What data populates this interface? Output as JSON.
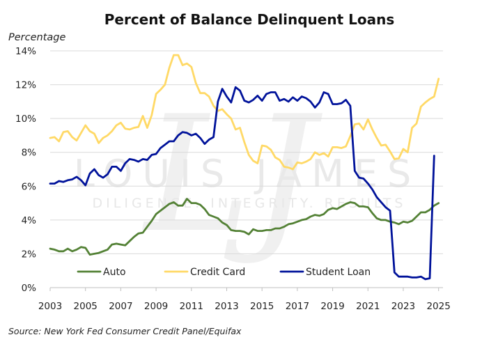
{
  "chart_data": {
    "type": "line",
    "title": "Percent of Balance Delinquent Loans",
    "ylabel": "Percentage",
    "xlabel": "",
    "source": "Source: New York Fed Consumer Credit Panel/Equifax",
    "watermark": {
      "main": "LOUIS JAMES",
      "tagline": "DILIGENCE. INTEGRITY. RESULTS",
      "monogram": "LJ"
    },
    "xlim": [
      2003,
      2025.25
    ],
    "ylim": [
      0,
      14
    ],
    "x_ticks": [
      "2003",
      "2005",
      "2007",
      "2009",
      "2011",
      "2013",
      "2015",
      "2017",
      "2019",
      "2021",
      "2023",
      "2025"
    ],
    "y_ticks": [
      "0%",
      "2%",
      "4%",
      "6%",
      "8%",
      "10%",
      "12%",
      "14%"
    ],
    "grid": "horizontal",
    "legend_position": "bottom",
    "series": [
      {
        "name": "Auto",
        "color": "#538135",
        "points": [
          [
            2003.0,
            2.3
          ],
          [
            2003.25,
            2.25
          ],
          [
            2003.5,
            2.15
          ],
          [
            2003.75,
            2.15
          ],
          [
            2004.0,
            2.3
          ],
          [
            2004.25,
            2.15
          ],
          [
            2004.5,
            2.25
          ],
          [
            2004.75,
            2.4
          ],
          [
            2005.0,
            2.35
          ],
          [
            2005.25,
            1.95
          ],
          [
            2005.5,
            2.0
          ],
          [
            2005.75,
            2.05
          ],
          [
            2006.0,
            2.15
          ],
          [
            2006.25,
            2.25
          ],
          [
            2006.5,
            2.55
          ],
          [
            2006.75,
            2.6
          ],
          [
            2007.0,
            2.55
          ],
          [
            2007.25,
            2.5
          ],
          [
            2007.5,
            2.75
          ],
          [
            2007.75,
            3.0
          ],
          [
            2008.0,
            3.2
          ],
          [
            2008.25,
            3.25
          ],
          [
            2008.5,
            3.6
          ],
          [
            2008.75,
            3.95
          ],
          [
            2009.0,
            4.35
          ],
          [
            2009.25,
            4.55
          ],
          [
            2009.5,
            4.75
          ],
          [
            2009.75,
            4.95
          ],
          [
            2010.0,
            5.05
          ],
          [
            2010.25,
            4.85
          ],
          [
            2010.5,
            4.85
          ],
          [
            2010.75,
            5.25
          ],
          [
            2011.0,
            5.0
          ],
          [
            2011.25,
            5.0
          ],
          [
            2011.5,
            4.9
          ],
          [
            2011.75,
            4.65
          ],
          [
            2012.0,
            4.3
          ],
          [
            2012.25,
            4.2
          ],
          [
            2012.5,
            4.1
          ],
          [
            2012.75,
            3.85
          ],
          [
            2013.0,
            3.7
          ],
          [
            2013.25,
            3.4
          ],
          [
            2013.5,
            3.35
          ],
          [
            2013.75,
            3.35
          ],
          [
            2014.0,
            3.3
          ],
          [
            2014.25,
            3.15
          ],
          [
            2014.5,
            3.45
          ],
          [
            2014.75,
            3.35
          ],
          [
            2015.0,
            3.35
          ],
          [
            2015.25,
            3.4
          ],
          [
            2015.5,
            3.4
          ],
          [
            2015.75,
            3.5
          ],
          [
            2016.0,
            3.5
          ],
          [
            2016.25,
            3.6
          ],
          [
            2016.5,
            3.75
          ],
          [
            2016.75,
            3.8
          ],
          [
            2017.0,
            3.9
          ],
          [
            2017.25,
            4.0
          ],
          [
            2017.5,
            4.05
          ],
          [
            2017.75,
            4.2
          ],
          [
            2018.0,
            4.3
          ],
          [
            2018.25,
            4.25
          ],
          [
            2018.5,
            4.35
          ],
          [
            2018.75,
            4.6
          ],
          [
            2019.0,
            4.7
          ],
          [
            2019.25,
            4.65
          ],
          [
            2019.5,
            4.8
          ],
          [
            2019.75,
            4.95
          ],
          [
            2020.0,
            5.05
          ],
          [
            2020.25,
            5.0
          ],
          [
            2020.5,
            4.8
          ],
          [
            2020.75,
            4.8
          ],
          [
            2021.0,
            4.75
          ],
          [
            2021.25,
            4.4
          ],
          [
            2021.5,
            4.1
          ],
          [
            2021.75,
            4.0
          ],
          [
            2022.0,
            4.0
          ],
          [
            2022.25,
            3.9
          ],
          [
            2022.5,
            3.85
          ],
          [
            2022.75,
            3.75
          ],
          [
            2023.0,
            3.9
          ],
          [
            2023.25,
            3.85
          ],
          [
            2023.5,
            3.95
          ],
          [
            2023.75,
            4.2
          ],
          [
            2024.0,
            4.45
          ],
          [
            2024.25,
            4.45
          ],
          [
            2024.5,
            4.6
          ],
          [
            2024.75,
            4.85
          ],
          [
            2025.0,
            5.0
          ]
        ]
      },
      {
        "name": "Credit Card",
        "color": "#ffd966",
        "points": [
          [
            2003.0,
            8.85
          ],
          [
            2003.25,
            8.9
          ],
          [
            2003.5,
            8.65
          ],
          [
            2003.75,
            9.2
          ],
          [
            2004.0,
            9.25
          ],
          [
            2004.25,
            8.9
          ],
          [
            2004.5,
            8.7
          ],
          [
            2004.75,
            9.15
          ],
          [
            2005.0,
            9.6
          ],
          [
            2005.25,
            9.25
          ],
          [
            2005.5,
            9.1
          ],
          [
            2005.75,
            8.55
          ],
          [
            2006.0,
            8.85
          ],
          [
            2006.25,
            9.0
          ],
          [
            2006.5,
            9.25
          ],
          [
            2006.75,
            9.6
          ],
          [
            2007.0,
            9.75
          ],
          [
            2007.25,
            9.4
          ],
          [
            2007.5,
            9.35
          ],
          [
            2007.75,
            9.45
          ],
          [
            2008.0,
            9.5
          ],
          [
            2008.25,
            10.15
          ],
          [
            2008.5,
            9.45
          ],
          [
            2008.75,
            10.2
          ],
          [
            2009.0,
            11.45
          ],
          [
            2009.25,
            11.7
          ],
          [
            2009.5,
            12.0
          ],
          [
            2009.75,
            13.0
          ],
          [
            2010.0,
            13.75
          ],
          [
            2010.25,
            13.75
          ],
          [
            2010.5,
            13.15
          ],
          [
            2010.75,
            13.25
          ],
          [
            2011.0,
            13.05
          ],
          [
            2011.25,
            12.1
          ],
          [
            2011.5,
            11.5
          ],
          [
            2011.75,
            11.5
          ],
          [
            2012.0,
            11.3
          ],
          [
            2012.25,
            10.75
          ],
          [
            2012.5,
            10.45
          ],
          [
            2012.75,
            10.55
          ],
          [
            2013.0,
            10.25
          ],
          [
            2013.25,
            10.0
          ],
          [
            2013.5,
            9.35
          ],
          [
            2013.75,
            9.45
          ],
          [
            2014.0,
            8.6
          ],
          [
            2014.25,
            7.85
          ],
          [
            2014.5,
            7.5
          ],
          [
            2014.75,
            7.35
          ],
          [
            2015.0,
            8.4
          ],
          [
            2015.25,
            8.35
          ],
          [
            2015.5,
            8.15
          ],
          [
            2015.75,
            7.7
          ],
          [
            2016.0,
            7.55
          ],
          [
            2016.25,
            7.15
          ],
          [
            2016.5,
            7.1
          ],
          [
            2016.75,
            7.0
          ],
          [
            2017.0,
            7.4
          ],
          [
            2017.25,
            7.35
          ],
          [
            2017.5,
            7.45
          ],
          [
            2017.75,
            7.6
          ],
          [
            2018.0,
            8.0
          ],
          [
            2018.25,
            7.85
          ],
          [
            2018.5,
            7.95
          ],
          [
            2018.75,
            7.75
          ],
          [
            2019.0,
            8.3
          ],
          [
            2019.25,
            8.3
          ],
          [
            2019.5,
            8.25
          ],
          [
            2019.75,
            8.35
          ],
          [
            2020.0,
            8.95
          ],
          [
            2020.25,
            9.65
          ],
          [
            2020.5,
            9.7
          ],
          [
            2020.75,
            9.35
          ],
          [
            2021.0,
            9.95
          ],
          [
            2021.25,
            9.35
          ],
          [
            2021.5,
            8.85
          ],
          [
            2021.75,
            8.4
          ],
          [
            2022.0,
            8.45
          ],
          [
            2022.25,
            8.05
          ],
          [
            2022.5,
            7.6
          ],
          [
            2022.75,
            7.65
          ],
          [
            2023.0,
            8.2
          ],
          [
            2023.25,
            8.0
          ],
          [
            2023.5,
            9.45
          ],
          [
            2023.75,
            9.7
          ],
          [
            2024.0,
            10.7
          ],
          [
            2024.25,
            10.95
          ],
          [
            2024.5,
            11.15
          ],
          [
            2024.75,
            11.3
          ],
          [
            2025.0,
            12.35
          ]
        ]
      },
      {
        "name": "Student Loan",
        "color": "#00129a",
        "points": [
          [
            2003.0,
            6.15
          ],
          [
            2003.25,
            6.15
          ],
          [
            2003.5,
            6.3
          ],
          [
            2003.75,
            6.25
          ],
          [
            2004.0,
            6.35
          ],
          [
            2004.25,
            6.4
          ],
          [
            2004.5,
            6.55
          ],
          [
            2004.75,
            6.35
          ],
          [
            2005.0,
            6.05
          ],
          [
            2005.25,
            6.75
          ],
          [
            2005.5,
            7.0
          ],
          [
            2005.75,
            6.65
          ],
          [
            2006.0,
            6.5
          ],
          [
            2006.25,
            6.7
          ],
          [
            2006.5,
            7.15
          ],
          [
            2006.75,
            7.15
          ],
          [
            2007.0,
            6.9
          ],
          [
            2007.25,
            7.35
          ],
          [
            2007.5,
            7.6
          ],
          [
            2007.75,
            7.55
          ],
          [
            2008.0,
            7.45
          ],
          [
            2008.25,
            7.6
          ],
          [
            2008.5,
            7.55
          ],
          [
            2008.75,
            7.85
          ],
          [
            2009.0,
            7.9
          ],
          [
            2009.25,
            8.25
          ],
          [
            2009.5,
            8.45
          ],
          [
            2009.75,
            8.65
          ],
          [
            2010.0,
            8.65
          ],
          [
            2010.25,
            9.0
          ],
          [
            2010.5,
            9.2
          ],
          [
            2010.75,
            9.15
          ],
          [
            2011.0,
            9.0
          ],
          [
            2011.25,
            9.1
          ],
          [
            2011.5,
            8.85
          ],
          [
            2011.75,
            8.5
          ],
          [
            2012.0,
            8.75
          ],
          [
            2012.25,
            8.9
          ],
          [
            2012.5,
            11.0
          ],
          [
            2012.75,
            11.75
          ],
          [
            2013.0,
            11.3
          ],
          [
            2013.25,
            10.95
          ],
          [
            2013.5,
            11.85
          ],
          [
            2013.75,
            11.65
          ],
          [
            2014.0,
            11.05
          ],
          [
            2014.25,
            10.95
          ],
          [
            2014.5,
            11.1
          ],
          [
            2014.75,
            11.35
          ],
          [
            2015.0,
            11.05
          ],
          [
            2015.25,
            11.45
          ],
          [
            2015.5,
            11.55
          ],
          [
            2015.75,
            11.55
          ],
          [
            2016.0,
            11.05
          ],
          [
            2016.25,
            11.15
          ],
          [
            2016.5,
            11.0
          ],
          [
            2016.75,
            11.25
          ],
          [
            2017.0,
            11.05
          ],
          [
            2017.25,
            11.3
          ],
          [
            2017.5,
            11.2
          ],
          [
            2017.75,
            11.0
          ],
          [
            2018.0,
            10.65
          ],
          [
            2018.25,
            10.95
          ],
          [
            2018.5,
            11.55
          ],
          [
            2018.75,
            11.45
          ],
          [
            2019.0,
            10.85
          ],
          [
            2019.25,
            10.85
          ],
          [
            2019.5,
            10.9
          ],
          [
            2019.75,
            11.1
          ],
          [
            2020.0,
            10.75
          ],
          [
            2020.25,
            6.9
          ],
          [
            2020.5,
            6.5
          ],
          [
            2020.75,
            6.45
          ],
          [
            2021.0,
            6.15
          ],
          [
            2021.25,
            5.8
          ],
          [
            2021.5,
            5.35
          ],
          [
            2021.75,
            5.05
          ],
          [
            2022.0,
            4.75
          ],
          [
            2022.25,
            4.55
          ],
          [
            2022.5,
            0.9
          ],
          [
            2022.75,
            0.65
          ],
          [
            2023.0,
            0.65
          ],
          [
            2023.25,
            0.65
          ],
          [
            2023.5,
            0.6
          ],
          [
            2023.75,
            0.6
          ],
          [
            2024.0,
            0.65
          ],
          [
            2024.25,
            0.5
          ],
          [
            2024.5,
            0.55
          ],
          [
            2024.75,
            7.8
          ]
        ]
      }
    ]
  }
}
